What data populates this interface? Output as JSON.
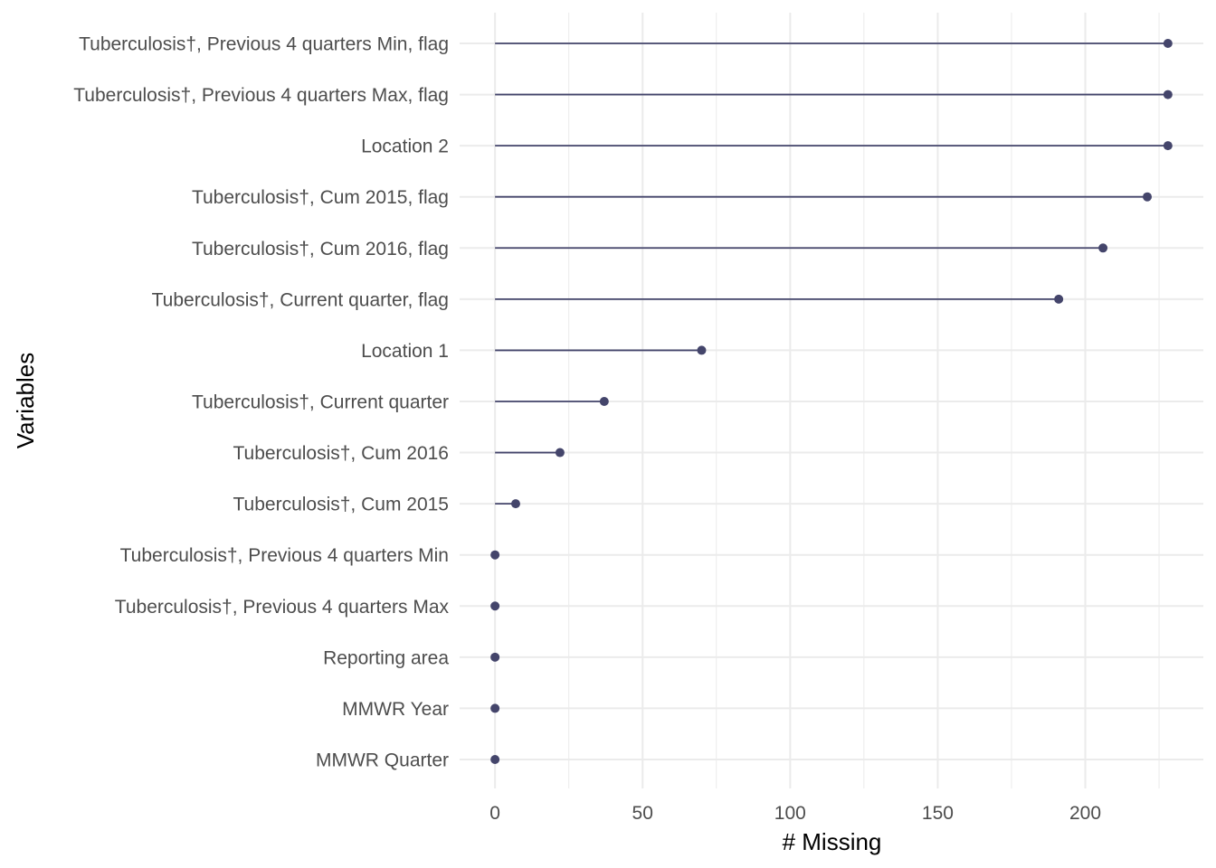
{
  "chart_data": {
    "type": "lollipop",
    "xlabel": "# Missing",
    "ylabel": "Variables",
    "xlim": [
      -12,
      240
    ],
    "x_ticks": [
      0,
      50,
      100,
      150,
      200
    ],
    "x_tick_labels": [
      "0",
      "50",
      "100",
      "150",
      "200"
    ],
    "grid": true,
    "legend": "none",
    "colors": {
      "marker": "#44456b",
      "grid": "#ebebeb",
      "text": "#4d4d4d",
      "title": "#000000"
    },
    "categories": [
      "Tuberculosis†, Previous 4 quarters Min, flag",
      "Tuberculosis†, Previous 4 quarters Max, flag",
      "Location 2",
      "Tuberculosis†, Cum 2015, flag",
      "Tuberculosis†, Cum 2016, flag",
      "Tuberculosis†, Current quarter, flag",
      "Location 1",
      "Tuberculosis†, Current quarter",
      "Tuberculosis†, Cum 2016",
      "Tuberculosis†, Cum 2015",
      "Tuberculosis†, Previous 4 quarters Min",
      "Tuberculosis†, Previous 4 quarters Max",
      "Reporting area",
      "MMWR Year",
      "MMWR Quarter"
    ],
    "values": [
      228,
      228,
      228,
      221,
      206,
      191,
      70,
      37,
      22,
      7,
      0,
      0,
      0,
      0,
      0
    ]
  }
}
